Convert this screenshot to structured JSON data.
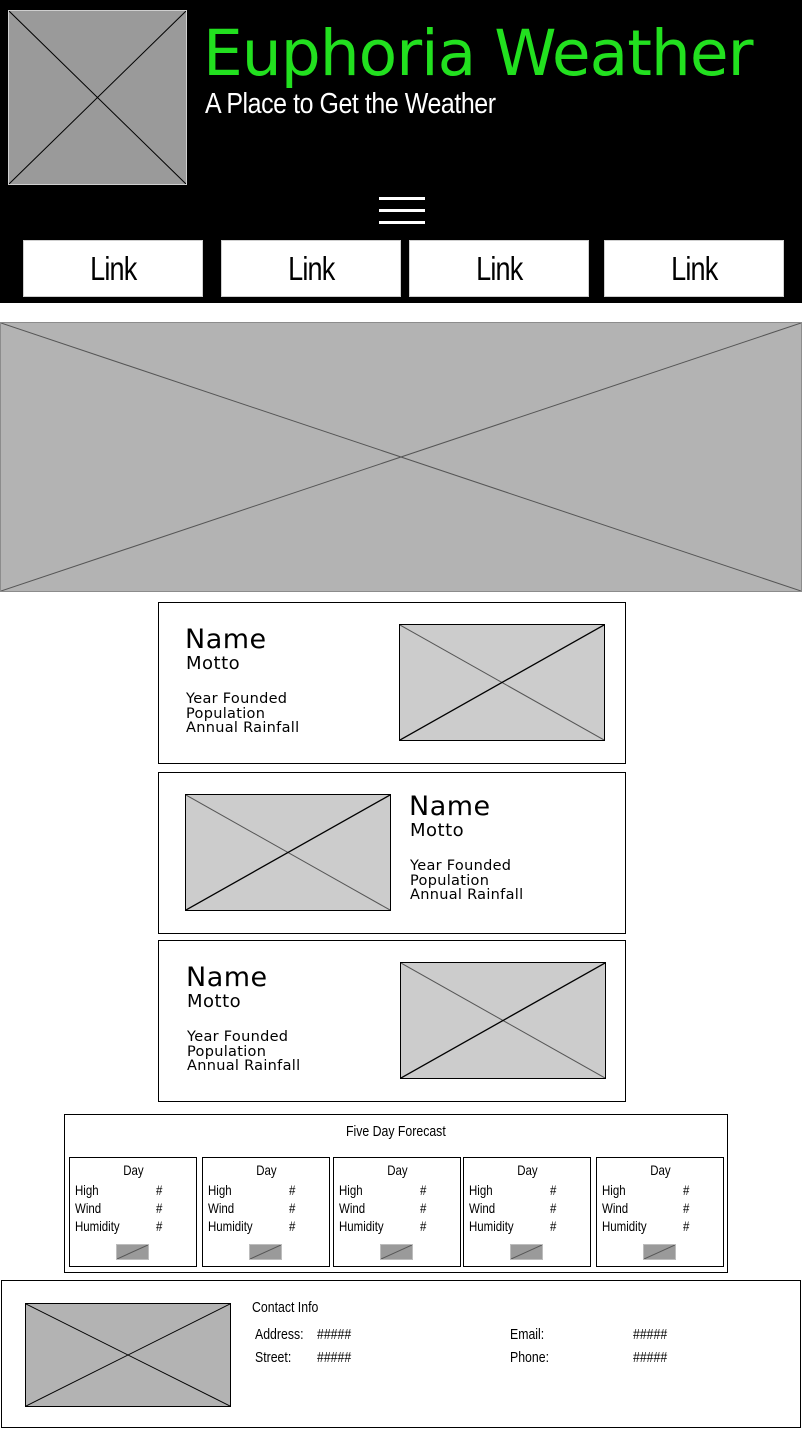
{
  "header": {
    "title": "Euphoria Weather",
    "subtitle": "A Place to Get the Weather",
    "logo_icon": "image-placeholder-icon",
    "menu_icon": "hamburger-menu-icon",
    "title_color": "#22e01f",
    "background_color": "#000000"
  },
  "nav": {
    "links": [
      {
        "label": "Link"
      },
      {
        "label": "Link"
      },
      {
        "label": "Link"
      },
      {
        "label": "Link"
      }
    ]
  },
  "hero": {
    "icon": "image-placeholder-icon"
  },
  "cities": [
    {
      "name": "Name",
      "motto": "Motto",
      "year_founded": "Year Founded",
      "population": "Population",
      "annual_rainfall": "Annual Rainfall",
      "image_icon": "image-placeholder-icon"
    },
    {
      "name": "Name",
      "motto": "Motto",
      "year_founded": "Year Founded",
      "population": "Population",
      "annual_rainfall": "Annual Rainfall",
      "image_icon": "image-placeholder-icon"
    },
    {
      "name": "Name",
      "motto": "Motto",
      "year_founded": "Year Founded",
      "population": "Population",
      "annual_rainfall": "Annual Rainfall",
      "image_icon": "image-placeholder-icon"
    }
  ],
  "forecast": {
    "title": "Five Day Forecast",
    "days": [
      {
        "day": "Day",
        "high_label": "High",
        "high": "#",
        "wind_label": "Wind",
        "wind": "#",
        "humidity_label": "Humidity",
        "humidity": "#",
        "icon": "weather-icon-placeholder"
      },
      {
        "day": "Day",
        "high_label": "High",
        "high": "#",
        "wind_label": "Wind",
        "wind": "#",
        "humidity_label": "Humidity",
        "humidity": "#",
        "icon": "weather-icon-placeholder"
      },
      {
        "day": "Day",
        "high_label": "High",
        "high": "#",
        "wind_label": "Wind",
        "wind": "#",
        "humidity_label": "Humidity",
        "humidity": "#",
        "icon": "weather-icon-placeholder"
      },
      {
        "day": "Day",
        "high_label": "High",
        "high": "#",
        "wind_label": "Wind",
        "wind": "#",
        "humidity_label": "Humidity",
        "humidity": "#",
        "icon": "weather-icon-placeholder"
      },
      {
        "day": "Day",
        "high_label": "High",
        "high": "#",
        "wind_label": "Wind",
        "wind": "#",
        "humidity_label": "Humidity",
        "humidity": "#",
        "icon": "weather-icon-placeholder"
      }
    ]
  },
  "footer": {
    "title": "Contact Info",
    "address_label": "Address:",
    "address_value": "#####",
    "street_label": "Street:",
    "street_value": "#####",
    "email_label": "Email:",
    "email_value": "#####",
    "phone_label": "Phone:",
    "phone_value": "#####",
    "image_icon": "image-placeholder-icon"
  }
}
